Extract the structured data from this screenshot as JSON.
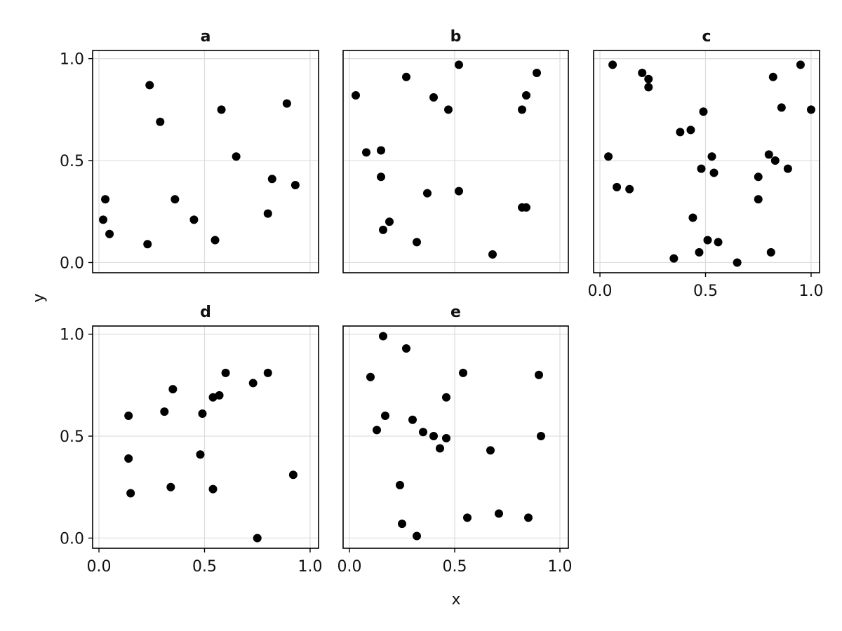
{
  "labels": {
    "xlabel": "x",
    "ylabel": "y"
  },
  "chart_data": [
    {
      "type": "scatter",
      "title": "a",
      "xlim": [
        -0.03,
        1.04
      ],
      "ylim": [
        -0.05,
        1.04
      ],
      "xticks": [
        "0.0",
        "0.5",
        "1.0"
      ],
      "yticks": [
        "0.0",
        "0.5",
        "1.0"
      ],
      "show_xticks": false,
      "show_yticks": true,
      "grid": true,
      "x": [
        0.02,
        0.03,
        0.05,
        0.23,
        0.24,
        0.29,
        0.36,
        0.45,
        0.55,
        0.58,
        0.65,
        0.8,
        0.82,
        0.89,
        0.93
      ],
      "y": [
        0.21,
        0.31,
        0.14,
        0.09,
        0.87,
        0.69,
        0.31,
        0.21,
        0.11,
        0.75,
        0.52,
        0.24,
        0.41,
        0.78,
        0.38
      ]
    },
    {
      "type": "scatter",
      "title": "b",
      "xlim": [
        -0.03,
        1.04
      ],
      "ylim": [
        -0.05,
        1.04
      ],
      "xticks": [
        "0.0",
        "0.5",
        "1.0"
      ],
      "yticks": [
        "0.0",
        "0.5",
        "1.0"
      ],
      "show_xticks": false,
      "show_yticks": false,
      "grid": true,
      "x": [
        0.03,
        0.08,
        0.15,
        0.15,
        0.16,
        0.19,
        0.27,
        0.32,
        0.37,
        0.4,
        0.47,
        0.52,
        0.52,
        0.68,
        0.82,
        0.82,
        0.84,
        0.84,
        0.89
      ],
      "y": [
        0.82,
        0.54,
        0.42,
        0.55,
        0.16,
        0.2,
        0.91,
        0.1,
        0.34,
        0.81,
        0.75,
        0.97,
        0.35,
        0.04,
        0.75,
        0.27,
        0.27,
        0.82,
        0.93
      ]
    },
    {
      "type": "scatter",
      "title": "c",
      "xlim": [
        -0.03,
        1.04
      ],
      "ylim": [
        -0.05,
        1.04
      ],
      "xticks": [
        "0.0",
        "0.5",
        "1.0"
      ],
      "yticks": [
        "0.0",
        "0.5",
        "1.0"
      ],
      "show_xticks": true,
      "show_yticks": false,
      "grid": true,
      "x": [
        0.04,
        0.06,
        0.08,
        0.14,
        0.2,
        0.23,
        0.23,
        0.35,
        0.38,
        0.43,
        0.44,
        0.47,
        0.48,
        0.49,
        0.51,
        0.53,
        0.54,
        0.56,
        0.65,
        0.75,
        0.75,
        0.8,
        0.81,
        0.82,
        0.83,
        0.86,
        0.89,
        0.95,
        1.0
      ],
      "y": [
        0.52,
        0.97,
        0.37,
        0.36,
        0.93,
        0.9,
        0.86,
        0.02,
        0.64,
        0.65,
        0.22,
        0.05,
        0.46,
        0.74,
        0.11,
        0.52,
        0.44,
        0.1,
        0.0,
        0.42,
        0.31,
        0.53,
        0.05,
        0.91,
        0.5,
        0.76,
        0.46,
        0.97,
        0.75
      ]
    },
    {
      "type": "scatter",
      "title": "d",
      "xlim": [
        -0.03,
        1.04
      ],
      "ylim": [
        -0.05,
        1.04
      ],
      "xticks": [
        "0.0",
        "0.5",
        "1.0"
      ],
      "yticks": [
        "0.0",
        "0.5",
        "1.0"
      ],
      "show_xticks": true,
      "show_yticks": true,
      "grid": true,
      "x": [
        0.14,
        0.14,
        0.15,
        0.31,
        0.34,
        0.35,
        0.48,
        0.49,
        0.54,
        0.54,
        0.57,
        0.6,
        0.73,
        0.75,
        0.8,
        0.92
      ],
      "y": [
        0.6,
        0.39,
        0.22,
        0.62,
        0.25,
        0.73,
        0.41,
        0.61,
        0.69,
        0.24,
        0.7,
        0.81,
        0.76,
        0.0,
        0.81,
        0.31
      ]
    },
    {
      "type": "scatter",
      "title": "e",
      "xlim": [
        -0.03,
        1.04
      ],
      "ylim": [
        -0.05,
        1.04
      ],
      "xticks": [
        "0.0",
        "0.5",
        "1.0"
      ],
      "yticks": [
        "0.0",
        "0.5",
        "1.0"
      ],
      "show_xticks": true,
      "show_yticks": false,
      "grid": true,
      "x": [
        0.1,
        0.13,
        0.16,
        0.17,
        0.24,
        0.25,
        0.27,
        0.3,
        0.32,
        0.35,
        0.4,
        0.43,
        0.46,
        0.46,
        0.54,
        0.56,
        0.67,
        0.71,
        0.85,
        0.9,
        0.91
      ],
      "y": [
        0.79,
        0.53,
        0.99,
        0.6,
        0.26,
        0.07,
        0.93,
        0.58,
        0.01,
        0.52,
        0.5,
        0.44,
        0.69,
        0.49,
        0.81,
        0.1,
        0.43,
        0.12,
        0.1,
        0.8,
        0.5
      ]
    }
  ]
}
